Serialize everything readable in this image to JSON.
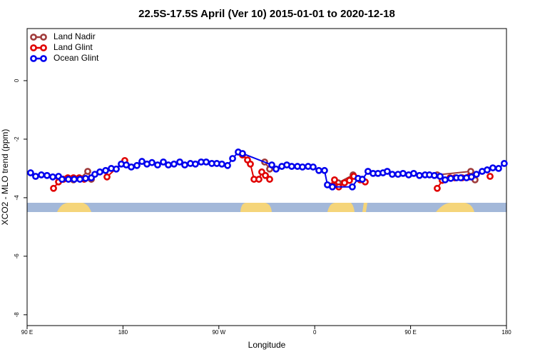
{
  "chart_data": {
    "type": "line",
    "title": "22.5S-17.5S April (Ver 10)   2015-01-01 to 2020-12-18",
    "x_label": "Longitude",
    "y_label": "XCO2 - MLO trend (ppm)",
    "xlim": [
      90,
      540
    ],
    "ylim": [
      -8.37,
      1.78
    ],
    "xticks": [
      {
        "value": 90,
        "label": "90 E"
      },
      180,
      {
        "value": 270,
        "label": "90 W"
      },
      {
        "value": 360,
        "label": "0"
      },
      {
        "value": 450,
        "label": "90 E"
      },
      {
        "value": 540,
        "label": "180"
      }
    ],
    "yticks": [
      0,
      -2,
      -4,
      -6,
      -8
    ],
    "legend": "top-left",
    "series": [
      {
        "name": "Land Nadir",
        "color": "#a03c3c",
        "x": [
          119.5,
          133.5,
          139.6,
          146.9,
          150.3,
          null,
          313.0,
          317.7,
          null,
          382.0,
          396.0,
          400.7,
          null,
          475.0,
          506.5,
          510.5
        ],
        "values": [
          -3.29,
          -3.39,
          -3.34,
          -3.1,
          -3.37,
          null,
          -2.78,
          -3.02,
          null,
          -3.49,
          -3.22,
          -3.34,
          null,
          -3.22,
          -3.1,
          -3.39
        ]
      },
      {
        "name": "Land Glint",
        "color": "#e00000",
        "x": [
          114.8,
          119.5,
          124.2,
          128.2,
          133.5,
          138.9,
          143.6,
          null,
          165.0,
          181.7,
          null,
          292.2,
          296.9,
          299.6,
          303.0,
          307.6,
          310.3,
          313.7,
          317.7,
          null,
          376.6,
          378.6,
          382.6,
          388.0,
          392.6,
          396.7,
          402.7,
          407.4,
          null,
          475.0,
          479.7,
          487.0,
          491.7,
          498.4,
          504.5,
          null,
          524.6
        ],
        "values": [
          -3.68,
          -3.46,
          -3.37,
          -3.32,
          -3.32,
          -3.32,
          -3.37,
          null,
          -3.29,
          -2.73,
          null,
          -2.54,
          -2.71,
          -2.85,
          -3.37,
          -3.37,
          -3.12,
          -3.24,
          -3.37,
          null,
          -3.59,
          -3.39,
          -3.63,
          -3.49,
          -3.41,
          -3.27,
          -3.39,
          -3.46,
          null,
          -3.68,
          -3.41,
          -3.32,
          -3.32,
          -3.32,
          -3.29,
          null,
          -3.27
        ]
      },
      {
        "name": "Ocean Glint",
        "color": "#0000ee",
        "x": [
          93.3,
          98.0,
          103.4,
          108.7,
          114.1,
          119.5,
          122.8,
          128.8,
          134.2,
          139.6,
          144.9,
          150.3,
          153.6,
          158.3,
          163.7,
          169.0,
          173.7,
          178.4,
          183.1,
          187.8,
          193.1,
          197.8,
          202.5,
          207.2,
          212.5,
          217.9,
          222.6,
          227.9,
          233.3,
          238.0,
          243.3,
          248.0,
          253.4,
          258.1,
          263.4,
          268.1,
          272.8,
          278.2,
          282.9,
          288.2,
          292.2,
          319.7,
          323.7,
          329.1,
          333.8,
          338.4,
          343.8,
          348.5,
          353.8,
          358.5,
          363.9,
          369.2,
          371.9,
          376.6,
          395.3,
          400.7,
          404.7,
          410.0,
          414.8,
          419.4,
          424.1,
          428.1,
          432.8,
          438.2,
          442.9,
          448.2,
          452.9,
          458.3,
          463.6,
          467.7,
          472.3,
          477.7,
          482.4,
          487.7,
          493.1,
          497.1,
          502.5,
          507.1,
          511.8,
          517.2,
          521.9,
          527.2,
          532.6,
          537.9
        ],
        "values": [
          -3.15,
          -3.27,
          -3.22,
          -3.24,
          -3.29,
          -3.27,
          -3.37,
          -3.37,
          -3.37,
          -3.37,
          -3.34,
          -3.32,
          -3.2,
          -3.12,
          -3.07,
          -3.0,
          -3.02,
          -2.85,
          -2.88,
          -2.95,
          -2.9,
          -2.76,
          -2.85,
          -2.8,
          -2.88,
          -2.78,
          -2.88,
          -2.85,
          -2.78,
          -2.88,
          -2.83,
          -2.85,
          -2.78,
          -2.78,
          -2.83,
          -2.83,
          -2.85,
          -2.9,
          -2.66,
          -2.44,
          -2.49,
          -2.88,
          -3.02,
          -2.93,
          -2.88,
          -2.93,
          -2.93,
          -2.95,
          -2.93,
          -2.95,
          -3.07,
          -3.07,
          -3.56,
          -3.63,
          -3.63,
          -3.34,
          -3.37,
          -3.1,
          -3.17,
          -3.17,
          -3.15,
          -3.1,
          -3.2,
          -3.2,
          -3.17,
          -3.22,
          -3.17,
          -3.24,
          -3.22,
          -3.22,
          -3.24,
          -3.27,
          -3.39,
          -3.34,
          -3.32,
          -3.32,
          -3.32,
          -3.29,
          -3.2,
          -3.1,
          -3.05,
          -2.98,
          -3.0,
          -2.83
        ]
      }
    ]
  }
}
